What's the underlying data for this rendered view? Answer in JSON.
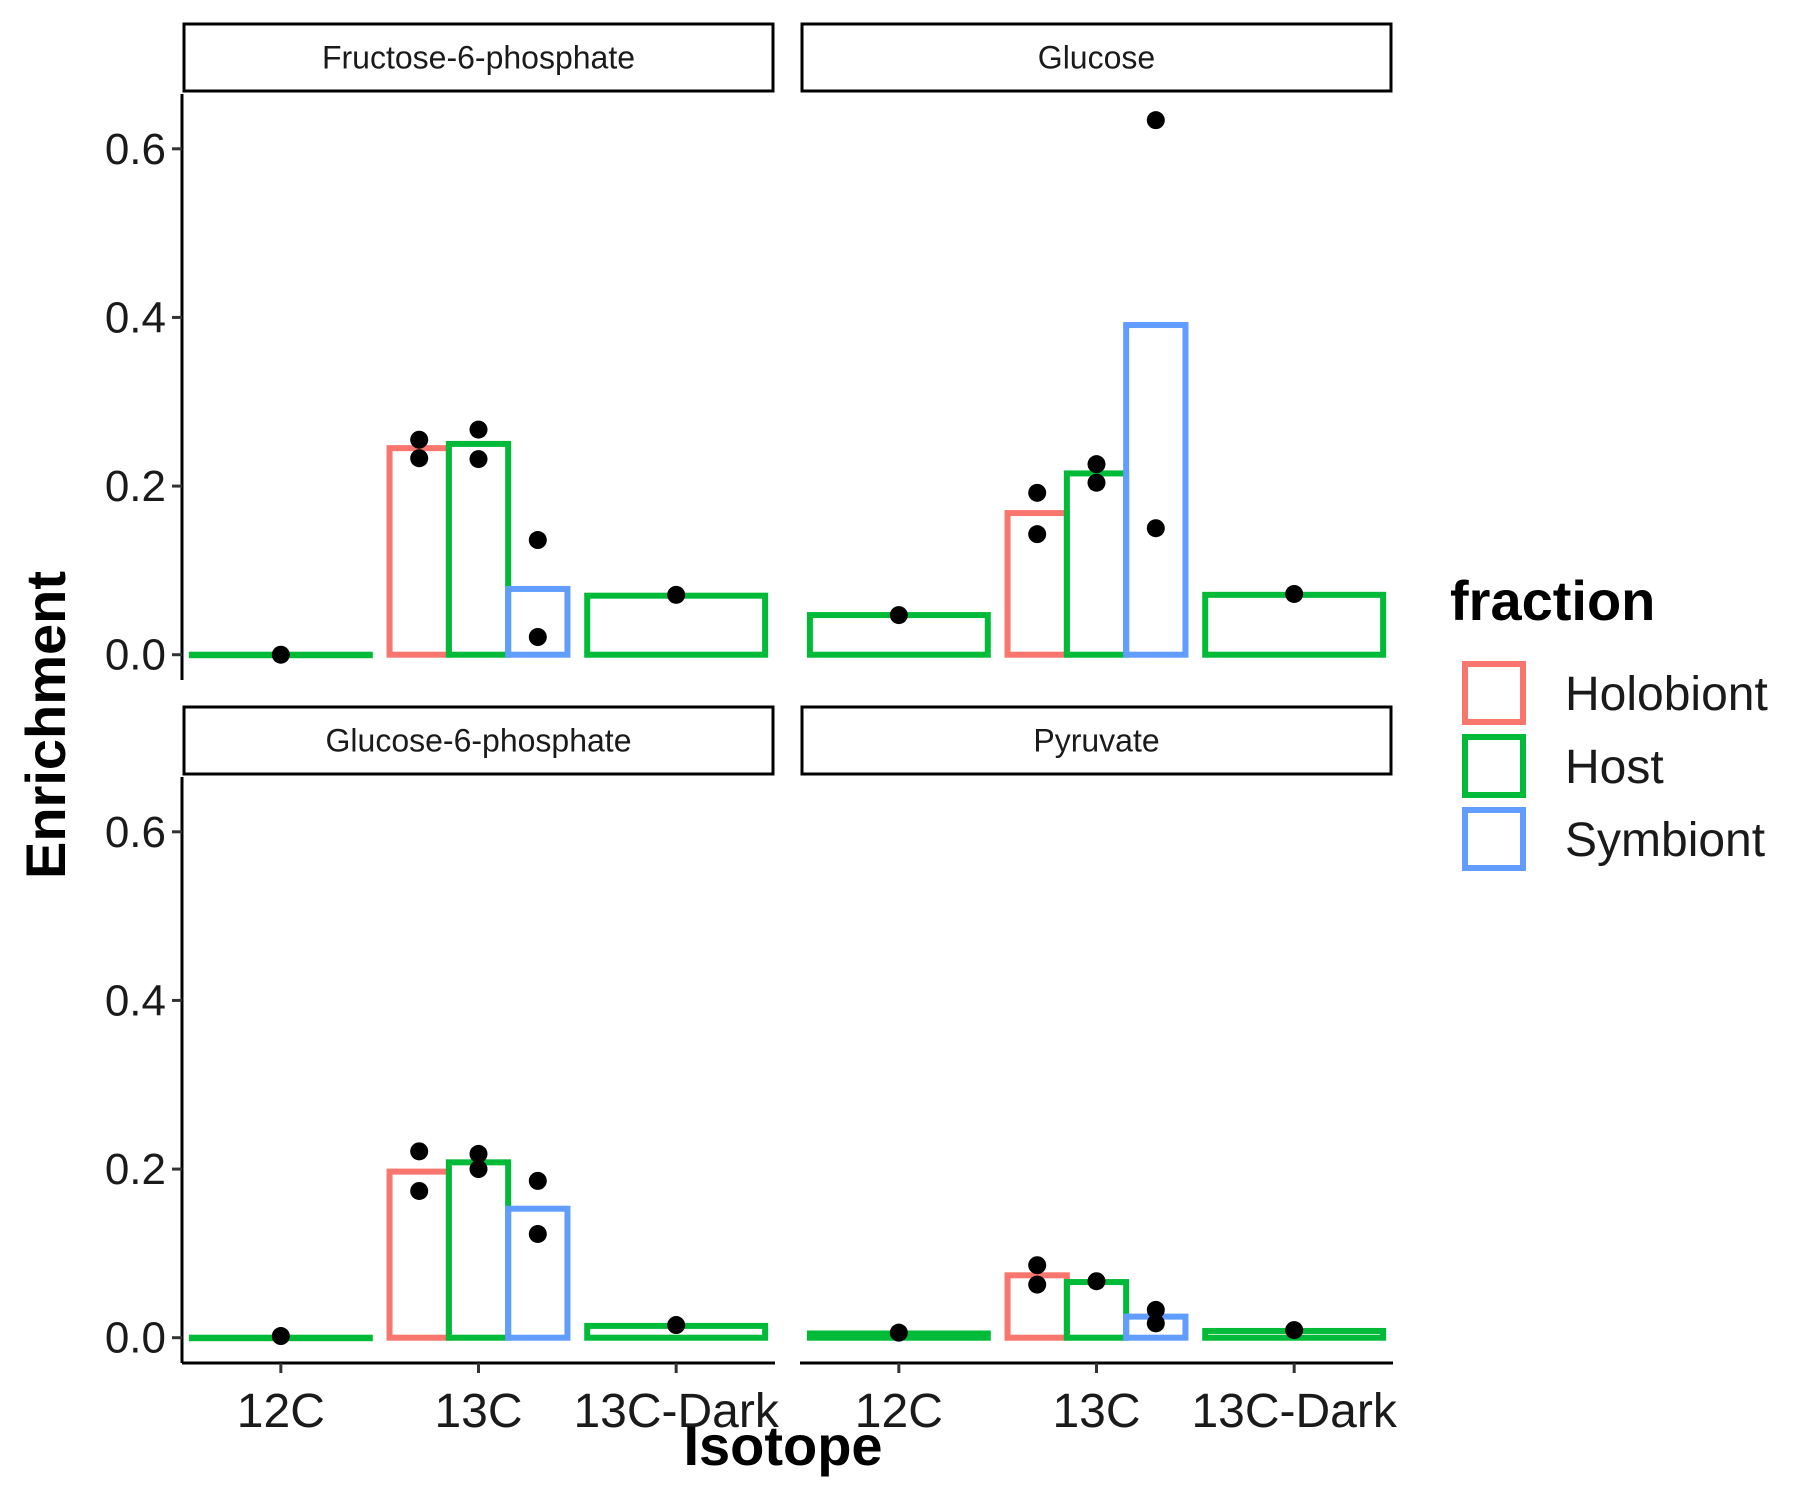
{
  "chart_data": {
    "type": "bar",
    "xlabel": "Isotope",
    "ylabel": "Enrichment",
    "categories": [
      "12C",
      "13C",
      "13C-Dark"
    ],
    "ylim": [
      -0.03,
      0.665
    ],
    "y_ticks": [
      "0.0",
      "0.2",
      "0.4",
      "0.6"
    ],
    "y_tick_values": [
      0.0,
      0.2,
      0.4,
      0.6
    ],
    "grid": false,
    "legend": {
      "title": "fraction",
      "position": "right",
      "entries": [
        {
          "name": "Holobiont",
          "color": "#F8766D"
        },
        {
          "name": "Host",
          "color": "#00BA38"
        },
        {
          "name": "Symbiont",
          "color": "#619CFF"
        }
      ]
    },
    "panels": [
      {
        "title": "Fructose-6-phosphate",
        "bars": [
          {
            "category": "12C",
            "fraction": "Host",
            "value": 0.0,
            "points": [
              0.0
            ]
          },
          {
            "category": "13C",
            "fraction": "Holobiont",
            "value": 0.245,
            "points": [
              0.255,
              0.233
            ]
          },
          {
            "category": "13C",
            "fraction": "Host",
            "value": 0.25,
            "points": [
              0.267,
              0.232
            ]
          },
          {
            "category": "13C",
            "fraction": "Symbiont",
            "value": 0.078,
            "points": [
              0.136,
              0.021
            ]
          },
          {
            "category": "13C-Dark",
            "fraction": "Host",
            "value": 0.07,
            "points": [
              0.071
            ]
          }
        ]
      },
      {
        "title": "Glucose",
        "bars": [
          {
            "category": "12C",
            "fraction": "Host",
            "value": 0.047,
            "points": [
              0.047
            ]
          },
          {
            "category": "13C",
            "fraction": "Holobiont",
            "value": 0.168,
            "points": [
              0.192,
              0.143
            ]
          },
          {
            "category": "13C",
            "fraction": "Host",
            "value": 0.215,
            "points": [
              0.226,
              0.204
            ]
          },
          {
            "category": "13C",
            "fraction": "Symbiont",
            "value": 0.391,
            "points": [
              0.634,
              0.15
            ]
          },
          {
            "category": "13C-Dark",
            "fraction": "Host",
            "value": 0.071,
            "points": [
              0.072
            ]
          }
        ]
      },
      {
        "title": "Glucose-6-phosphate",
        "bars": [
          {
            "category": "12C",
            "fraction": "Host",
            "value": 0.0,
            "points": [
              0.002
            ]
          },
          {
            "category": "13C",
            "fraction": "Holobiont",
            "value": 0.197,
            "points": [
              0.221,
              0.174
            ]
          },
          {
            "category": "13C",
            "fraction": "Host",
            "value": 0.208,
            "points": [
              0.218,
              0.2
            ]
          },
          {
            "category": "13C",
            "fraction": "Symbiont",
            "value": 0.153,
            "points": [
              0.186,
              0.123
            ]
          },
          {
            "category": "13C-Dark",
            "fraction": "Host",
            "value": 0.014,
            "points": [
              0.015
            ]
          }
        ]
      },
      {
        "title": "Pyruvate",
        "bars": [
          {
            "category": "12C",
            "fraction": "Host",
            "value": 0.005,
            "points": [
              0.006
            ]
          },
          {
            "category": "13C",
            "fraction": "Holobiont",
            "value": 0.074,
            "points": [
              0.086,
              0.063
            ]
          },
          {
            "category": "13C",
            "fraction": "Host",
            "value": 0.066,
            "points": [
              0.067
            ]
          },
          {
            "category": "13C",
            "fraction": "Symbiont",
            "value": 0.025,
            "points": [
              0.033,
              0.017
            ]
          },
          {
            "category": "13C-Dark",
            "fraction": "Host",
            "value": 0.008,
            "points": [
              0.009
            ]
          }
        ]
      }
    ]
  }
}
